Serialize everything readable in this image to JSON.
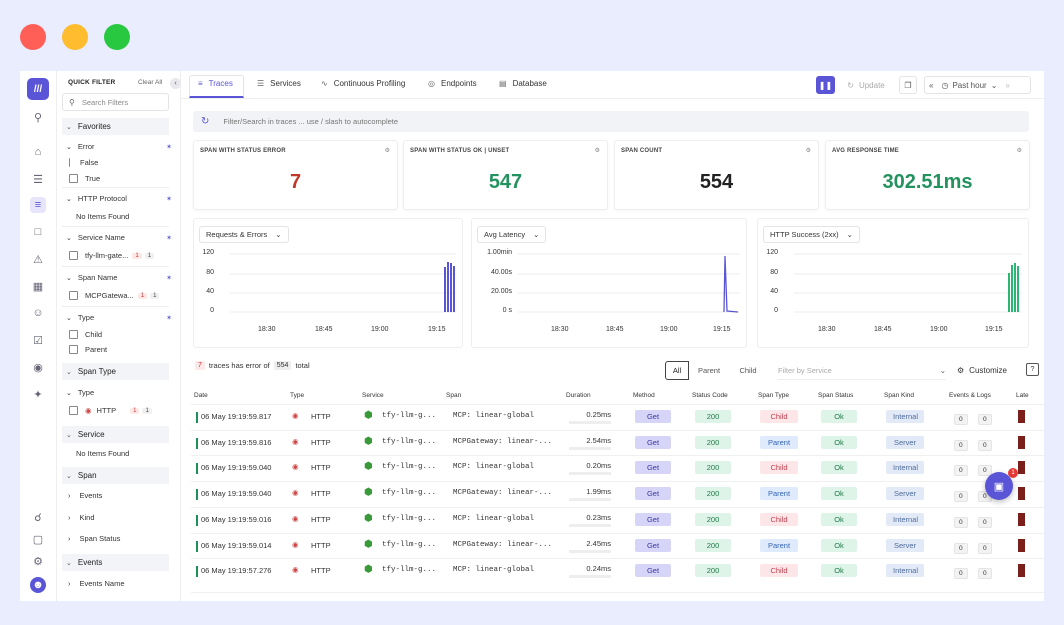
{
  "window_controls": {
    "close_color": "#ff5f57",
    "minimize_color": "#febc2e",
    "maximize_color": "#28c840"
  },
  "rail": {
    "icons": [
      "home-icon",
      "layers-icon",
      "traces-icon",
      "document-icon",
      "alert-icon",
      "dashboard-icon",
      "bot-icon",
      "evaluate-icon",
      "settings-circle-icon",
      "sparkle-icon"
    ],
    "bottom_icons": [
      "headset-icon",
      "box-icon",
      "gear-icon",
      "user-avatar"
    ]
  },
  "filter": {
    "title": "QUICK FILTER",
    "clear": "Clear All",
    "search_placeholder": "Search Filters",
    "favorites": "Favorites",
    "error": {
      "label": "Error",
      "opts": [
        "False",
        "True"
      ]
    },
    "http_protocol": {
      "label": "HTTP Protocol",
      "empty": "No Items Found"
    },
    "service_name": {
      "label": "Service Name",
      "item": "tfy-llm-gate...",
      "c1": "1",
      "c2": "1"
    },
    "span_name": {
      "label": "Span Name",
      "item": "MCPGatewa...",
      "c1": "1",
      "c2": "1"
    },
    "type": {
      "label": "Type",
      "opts": [
        "Child",
        "Parent"
      ]
    },
    "span_type": "Span Type",
    "type2": {
      "label": "Type",
      "item": "HTTP",
      "c1": "1",
      "c2": "1"
    },
    "service": {
      "label": "Service",
      "empty": "No Items Found"
    },
    "span": {
      "label": "Span",
      "items": [
        "Events",
        "Kind",
        "Span Status"
      ]
    },
    "events": {
      "label": "Events",
      "item": "Events Name"
    }
  },
  "tabs": [
    "Traces",
    "Services",
    "Continuous Profiling",
    "Endpoints",
    "Database"
  ],
  "toolbar": {
    "update": "Update",
    "time": "Past hour"
  },
  "search": {
    "placeholder": "Filter/Search in traces ... use / slash to autocomplete"
  },
  "cards": [
    {
      "label": "SPAN WITH STATUS ERROR",
      "value": "7",
      "color": "#c0392b"
    },
    {
      "label": "SPAN WITH STATUS OK | UNSET",
      "value": "547",
      "color": "#23925f"
    },
    {
      "label": "SPAN COUNT",
      "value": "554",
      "color": "#222222"
    },
    {
      "label": "AVG RESPONSE TIME",
      "value": "302.51ms",
      "color": "#23925f"
    }
  ],
  "charts": [
    {
      "title": "Requests & Errors",
      "yticks": [
        "120",
        "80",
        "40",
        "0"
      ],
      "xticks": [
        "18:30",
        "18:45",
        "19:00",
        "19:15"
      ],
      "color": "#5a55d6"
    },
    {
      "title": "Avg Latency",
      "yticks": [
        "1.00min",
        "40.00s",
        "20.00s",
        "0 s"
      ],
      "xticks": [
        "18:30",
        "18:45",
        "19:00",
        "19:15"
      ],
      "color": "#5a55d6"
    },
    {
      "title": "HTTP Success (2xx)",
      "yticks": [
        "120",
        "80",
        "40",
        "0"
      ],
      "xticks": [
        "18:30",
        "18:45",
        "19:00",
        "19:15"
      ],
      "color": "#2bb673"
    }
  ],
  "traces_summary": {
    "errors": "7",
    "mid": "traces has error of",
    "total": "554",
    "suffix": "total"
  },
  "segments": [
    "All",
    "Parent",
    "Child"
  ],
  "service_filter": "Filter by Service",
  "customize": "Customize",
  "columns": [
    "Date",
    "Type",
    "Service",
    "Span",
    "Duration",
    "Method",
    "Status Code",
    "Span Type",
    "Span Status",
    "Span Kind",
    "Events & Logs",
    "Late"
  ],
  "rows": [
    {
      "date": "06 May 19:19:59.817",
      "type": "HTTP",
      "service": "tfy-llm-g...",
      "span": "MCP: linear-global",
      "duration": "0.25ms",
      "method": "Get",
      "code": "200",
      "span_type": "Child",
      "status": "Ok",
      "kind": "Internal",
      "ev": "0",
      "logs": "0"
    },
    {
      "date": "06 May 19:19:59.816",
      "type": "HTTP",
      "service": "tfy-llm-g...",
      "span": "MCPGateway: linear-...",
      "duration": "2.54ms",
      "method": "Get",
      "code": "200",
      "span_type": "Parent",
      "status": "Ok",
      "kind": "Server",
      "ev": "0",
      "logs": "0"
    },
    {
      "date": "06 May 19:19:59.040",
      "type": "HTTP",
      "service": "tfy-llm-g...",
      "span": "MCP: linear-global",
      "duration": "0.20ms",
      "method": "Get",
      "code": "200",
      "span_type": "Child",
      "status": "Ok",
      "kind": "Internal",
      "ev": "0",
      "logs": "0"
    },
    {
      "date": "06 May 19:19:59.040",
      "type": "HTTP",
      "service": "tfy-llm-g...",
      "span": "MCPGateway: linear-...",
      "duration": "1.99ms",
      "method": "Get",
      "code": "200",
      "span_type": "Parent",
      "status": "Ok",
      "kind": "Server",
      "ev": "0",
      "logs": "0"
    },
    {
      "date": "06 May 19:19:59.016",
      "type": "HTTP",
      "service": "tfy-llm-g...",
      "span": "MCP: linear-global",
      "duration": "0.23ms",
      "method": "Get",
      "code": "200",
      "span_type": "Child",
      "status": "Ok",
      "kind": "Internal",
      "ev": "0",
      "logs": "0"
    },
    {
      "date": "06 May 19:19:59.014",
      "type": "HTTP",
      "service": "tfy-llm-g...",
      "span": "MCPGateway: linear-...",
      "duration": "2.45ms",
      "method": "Get",
      "code": "200",
      "span_type": "Parent",
      "status": "Ok",
      "kind": "Server",
      "ev": "0",
      "logs": "0"
    },
    {
      "date": "06 May 19:19:57.276",
      "type": "HTTP",
      "service": "tfy-llm-g...",
      "span": "MCP: linear-global",
      "duration": "0.24ms",
      "method": "Get",
      "code": "200",
      "span_type": "Child",
      "status": "Ok",
      "kind": "Internal",
      "ev": "0",
      "logs": "0"
    }
  ],
  "chat_badge": "1"
}
